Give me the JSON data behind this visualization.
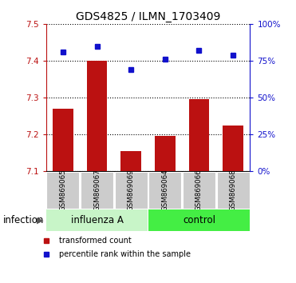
{
  "title": "GDS4825 / ILMN_1703409",
  "samples": [
    "GSM869065",
    "GSM869067",
    "GSM869069",
    "GSM869064",
    "GSM869066",
    "GSM869068"
  ],
  "transformed_count": [
    7.27,
    7.4,
    7.155,
    7.195,
    7.295,
    7.225
  ],
  "percentile_rank": [
    81,
    85,
    69,
    76,
    82,
    79
  ],
  "ylim_left": [
    7.1,
    7.5
  ],
  "ylim_right": [
    0,
    100
  ],
  "bar_color": "#bb1111",
  "dot_color": "#1111cc",
  "influenza_label": "influenza A",
  "control_label": "control",
  "group_label": "infection",
  "legend_bar_label": "transformed count",
  "legend_dot_label": "percentile rank within the sample",
  "group_bg_influenza": "#c8f5c8",
  "group_bg_control": "#44ee44",
  "xticklabel_bg": "#cccccc",
  "title_fontsize": 10,
  "tick_fontsize": 7.5,
  "label_fontsize": 8.5
}
